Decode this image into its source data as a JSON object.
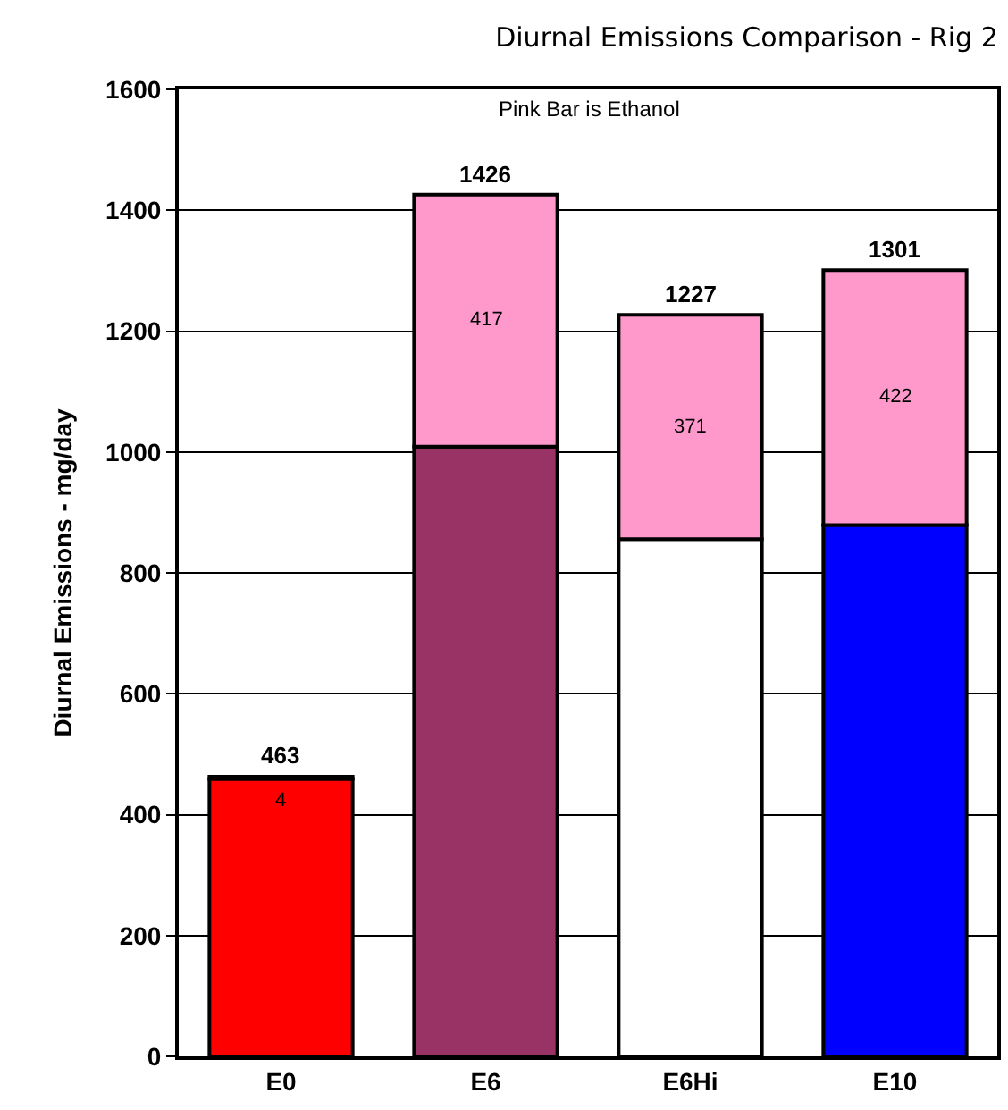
{
  "chart_data": {
    "type": "bar",
    "title": "Diurnal Emissions Comparison - Rig 2",
    "ylabel": "Diurnal Emissions - mg/day",
    "categories": [
      "E0",
      "E6",
      "E6Hi",
      "E10"
    ],
    "stacked": true,
    "series": [
      {
        "colors": [
          "#ff0000",
          "#993366",
          "#ffffff",
          "#0000ff"
        ],
        "values": [
          459,
          1009,
          856,
          879
        ]
      },
      {
        "color": "#ff99cc",
        "values": [
          4,
          417,
          371,
          422
        ],
        "value_labels": [
          "4",
          "417",
          "371",
          "422"
        ]
      }
    ],
    "totals": [
      "463",
      "1426",
      "1227",
      "1301"
    ],
    "annotations": [
      "Pink Bar is Ethanol"
    ],
    "ylim": [
      0,
      1600
    ],
    "yticks": [
      0,
      200,
      400,
      600,
      800,
      1000,
      1200,
      1400,
      1600
    ],
    "grid": "y"
  }
}
